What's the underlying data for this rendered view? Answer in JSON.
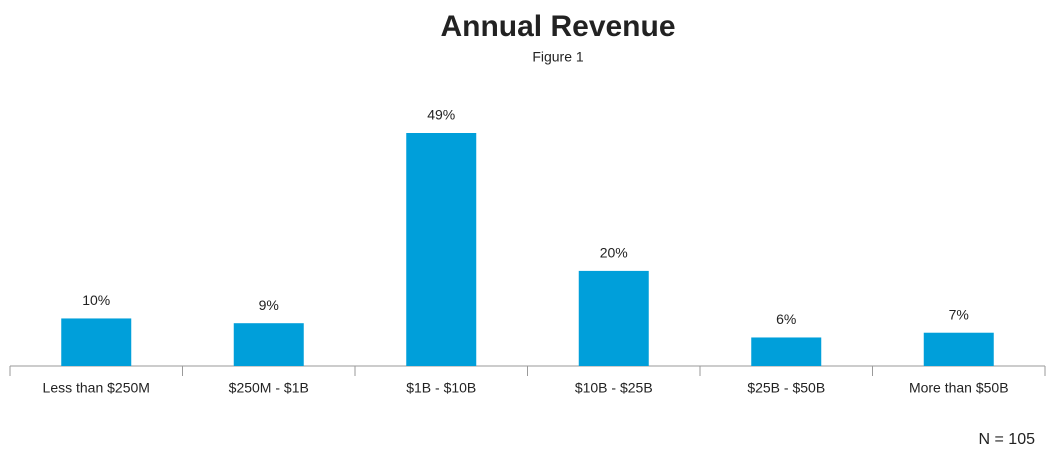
{
  "chart_data": {
    "type": "bar",
    "title": "Annual Revenue",
    "subtitle": "Figure 1",
    "categories": [
      "Less than $250M",
      "$250M - $1B",
      "$1B - $10B",
      "$10B - $25B",
      "$25B - $50B",
      "More than $50B"
    ],
    "values": [
      10,
      9,
      49,
      20,
      6,
      7
    ],
    "value_labels": [
      "10%",
      "9%",
      "49%",
      "20%",
      "6%",
      "7%"
    ],
    "color": "#009fda",
    "annotation": "N = 105"
  }
}
